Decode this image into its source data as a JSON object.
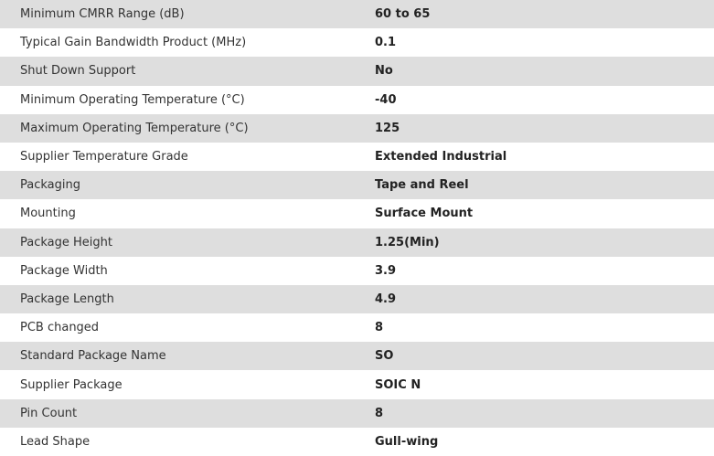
{
  "specs": [
    {
      "label": "Minimum CMRR Range (dB)",
      "value": "60 to 65"
    },
    {
      "label": "Typical Gain Bandwidth Product (MHz)",
      "value": "0.1"
    },
    {
      "label": "Shut Down Support",
      "value": "No"
    },
    {
      "label": "Minimum Operating Temperature (°C)",
      "value": "-40"
    },
    {
      "label": "Maximum Operating Temperature (°C)",
      "value": "125"
    },
    {
      "label": "Supplier Temperature Grade",
      "value": "Extended Industrial"
    },
    {
      "label": "Packaging",
      "value": "Tape and Reel"
    },
    {
      "label": "Mounting",
      "value": "Surface Mount"
    },
    {
      "label": "Package Height",
      "value": "1.25(Min)"
    },
    {
      "label": "Package Width",
      "value": "3.9"
    },
    {
      "label": "Package Length",
      "value": "4.9"
    },
    {
      "label": "PCB changed",
      "value": "8"
    },
    {
      "label": "Standard Package Name",
      "value": "SO"
    },
    {
      "label": "Supplier Package",
      "value": "SOIC N"
    },
    {
      "label": "Pin Count",
      "value": "8"
    },
    {
      "label": "Lead Shape",
      "value": "Gull-wing"
    }
  ]
}
